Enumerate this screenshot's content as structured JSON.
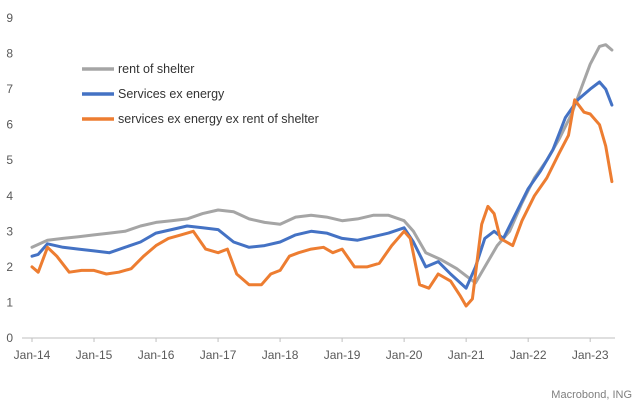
{
  "chart_data": {
    "type": "line",
    "title": "",
    "xlabel": "",
    "ylabel": "",
    "ylim": [
      0,
      9
    ],
    "yticks": [
      0,
      1,
      2,
      3,
      4,
      5,
      6,
      7,
      8,
      9
    ],
    "xlim": [
      2014.0,
      2023.4
    ],
    "xticks": [
      {
        "label": "Jan-14",
        "x": 2014.0
      },
      {
        "label": "Jan-15",
        "x": 2015.0
      },
      {
        "label": "Jan-16",
        "x": 2016.0
      },
      {
        "label": "Jan-17",
        "x": 2017.0
      },
      {
        "label": "Jan-18",
        "x": 2018.0
      },
      {
        "label": "Jan-19",
        "x": 2019.0
      },
      {
        "label": "Jan-20",
        "x": 2020.0
      },
      {
        "label": "Jan-21",
        "x": 2021.0
      },
      {
        "label": "Jan-22",
        "x": 2022.0
      },
      {
        "label": "Jan-23",
        "x": 2023.0
      }
    ],
    "grid": false,
    "legend_position": "top-left",
    "source": "Macrobond, ING",
    "series": [
      {
        "name": "rent of shelter",
        "color": "#a5a5a5",
        "points": [
          [
            2014.0,
            2.55
          ],
          [
            2014.25,
            2.75
          ],
          [
            2014.5,
            2.8
          ],
          [
            2014.75,
            2.85
          ],
          [
            2015.0,
            2.9
          ],
          [
            2015.25,
            2.95
          ],
          [
            2015.5,
            3.0
          ],
          [
            2015.75,
            3.15
          ],
          [
            2016.0,
            3.25
          ],
          [
            2016.25,
            3.3
          ],
          [
            2016.5,
            3.35
          ],
          [
            2016.75,
            3.5
          ],
          [
            2017.0,
            3.6
          ],
          [
            2017.25,
            3.55
          ],
          [
            2017.5,
            3.35
          ],
          [
            2017.75,
            3.25
          ],
          [
            2018.0,
            3.2
          ],
          [
            2018.25,
            3.4
          ],
          [
            2018.5,
            3.45
          ],
          [
            2018.75,
            3.4
          ],
          [
            2019.0,
            3.3
          ],
          [
            2019.25,
            3.35
          ],
          [
            2019.5,
            3.45
          ],
          [
            2019.75,
            3.45
          ],
          [
            2020.0,
            3.3
          ],
          [
            2020.15,
            3.0
          ],
          [
            2020.35,
            2.4
          ],
          [
            2020.6,
            2.2
          ],
          [
            2020.85,
            1.95
          ],
          [
            2021.0,
            1.75
          ],
          [
            2021.15,
            1.55
          ],
          [
            2021.3,
            2.0
          ],
          [
            2021.5,
            2.6
          ],
          [
            2021.7,
            3.0
          ],
          [
            2021.9,
            3.8
          ],
          [
            2022.1,
            4.5
          ],
          [
            2022.3,
            5.0
          ],
          [
            2022.5,
            5.6
          ],
          [
            2022.7,
            6.3
          ],
          [
            2022.85,
            7.0
          ],
          [
            2023.0,
            7.7
          ],
          [
            2023.15,
            8.2
          ],
          [
            2023.25,
            8.25
          ],
          [
            2023.35,
            8.1
          ]
        ]
      },
      {
        "name": "Services ex energy",
        "color": "#4472c4",
        "points": [
          [
            2014.0,
            2.3
          ],
          [
            2014.1,
            2.35
          ],
          [
            2014.25,
            2.65
          ],
          [
            2014.5,
            2.55
          ],
          [
            2014.75,
            2.5
          ],
          [
            2015.0,
            2.45
          ],
          [
            2015.25,
            2.4
          ],
          [
            2015.5,
            2.55
          ],
          [
            2015.75,
            2.7
          ],
          [
            2016.0,
            2.95
          ],
          [
            2016.25,
            3.05
          ],
          [
            2016.5,
            3.15
          ],
          [
            2016.75,
            3.1
          ],
          [
            2017.0,
            3.05
          ],
          [
            2017.25,
            2.7
          ],
          [
            2017.5,
            2.55
          ],
          [
            2017.75,
            2.6
          ],
          [
            2018.0,
            2.7
          ],
          [
            2018.25,
            2.9
          ],
          [
            2018.5,
            3.0
          ],
          [
            2018.75,
            2.95
          ],
          [
            2019.0,
            2.8
          ],
          [
            2019.25,
            2.75
          ],
          [
            2019.5,
            2.85
          ],
          [
            2019.75,
            2.95
          ],
          [
            2020.0,
            3.1
          ],
          [
            2020.15,
            2.7
          ],
          [
            2020.35,
            2.0
          ],
          [
            2020.55,
            2.15
          ],
          [
            2020.75,
            1.8
          ],
          [
            2021.0,
            1.4
          ],
          [
            2021.15,
            2.0
          ],
          [
            2021.3,
            2.8
          ],
          [
            2021.45,
            3.0
          ],
          [
            2021.6,
            2.8
          ],
          [
            2021.8,
            3.5
          ],
          [
            2022.0,
            4.2
          ],
          [
            2022.2,
            4.7
          ],
          [
            2022.4,
            5.3
          ],
          [
            2022.6,
            6.2
          ],
          [
            2022.8,
            6.7
          ],
          [
            2023.0,
            7.0
          ],
          [
            2023.15,
            7.2
          ],
          [
            2023.25,
            7.0
          ],
          [
            2023.35,
            6.55
          ]
        ]
      },
      {
        "name": "services ex energy ex rent of shelter",
        "color": "#ed7d31",
        "points": [
          [
            2014.0,
            2.0
          ],
          [
            2014.1,
            1.85
          ],
          [
            2014.25,
            2.55
          ],
          [
            2014.4,
            2.3
          ],
          [
            2014.6,
            1.85
          ],
          [
            2014.8,
            1.9
          ],
          [
            2015.0,
            1.9
          ],
          [
            2015.2,
            1.8
          ],
          [
            2015.4,
            1.85
          ],
          [
            2015.6,
            1.95
          ],
          [
            2015.8,
            2.3
          ],
          [
            2016.0,
            2.6
          ],
          [
            2016.2,
            2.8
          ],
          [
            2016.4,
            2.9
          ],
          [
            2016.6,
            3.0
          ],
          [
            2016.8,
            2.5
          ],
          [
            2017.0,
            2.4
          ],
          [
            2017.15,
            2.5
          ],
          [
            2017.3,
            1.8
          ],
          [
            2017.5,
            1.5
          ],
          [
            2017.7,
            1.5
          ],
          [
            2017.85,
            1.8
          ],
          [
            2018.0,
            1.9
          ],
          [
            2018.15,
            2.3
          ],
          [
            2018.3,
            2.4
          ],
          [
            2018.5,
            2.5
          ],
          [
            2018.7,
            2.55
          ],
          [
            2018.85,
            2.4
          ],
          [
            2019.0,
            2.5
          ],
          [
            2019.2,
            2.0
          ],
          [
            2019.4,
            2.0
          ],
          [
            2019.6,
            2.1
          ],
          [
            2019.8,
            2.6
          ],
          [
            2020.0,
            3.0
          ],
          [
            2020.1,
            2.8
          ],
          [
            2020.25,
            1.5
          ],
          [
            2020.4,
            1.4
          ],
          [
            2020.55,
            1.8
          ],
          [
            2020.75,
            1.6
          ],
          [
            2020.9,
            1.2
          ],
          [
            2021.0,
            0.9
          ],
          [
            2021.1,
            1.1
          ],
          [
            2021.25,
            3.2
          ],
          [
            2021.35,
            3.7
          ],
          [
            2021.45,
            3.5
          ],
          [
            2021.55,
            2.8
          ],
          [
            2021.75,
            2.6
          ],
          [
            2021.9,
            3.3
          ],
          [
            2022.1,
            4.0
          ],
          [
            2022.3,
            4.5
          ],
          [
            2022.5,
            5.2
          ],
          [
            2022.65,
            5.7
          ],
          [
            2022.75,
            6.7
          ],
          [
            2022.9,
            6.35
          ],
          [
            2023.0,
            6.3
          ],
          [
            2023.15,
            6.0
          ],
          [
            2023.25,
            5.4
          ],
          [
            2023.35,
            4.4
          ]
        ]
      }
    ]
  }
}
